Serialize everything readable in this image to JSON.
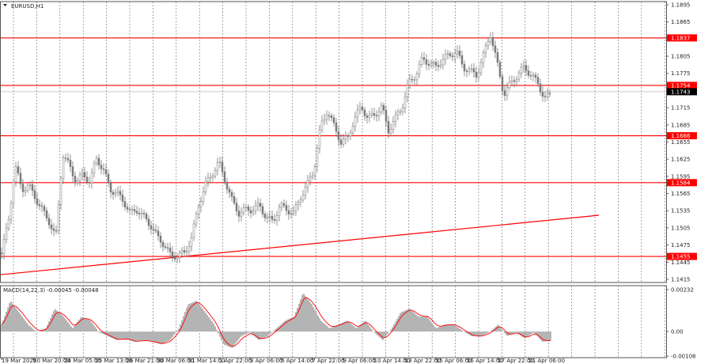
{
  "chart_data": {
    "type": "candlestick",
    "symbol_label": "EURUSD,H1",
    "indicator_label": "MACD(14,22,3) -0.00045 -0.00048",
    "price_axis": {
      "range": [
        1.1415,
        1.1895
      ],
      "ticks": [
        "1.1895",
        "1.1865",
        "1.1805",
        "1.1775",
        "1.1715",
        "1.1685",
        "1.1655",
        "1.1625",
        "1.1595",
        "1.1565",
        "1.1535",
        "1.1505",
        "1.1475",
        "1.1445",
        "1.1415"
      ]
    },
    "macd_axis": {
      "range": [
        -0.00108,
        0.00232
      ],
      "ticks": [
        "0.00232",
        "0.00",
        "-0.00108"
      ]
    },
    "time_labels": [
      "19 Mar 2026",
      "20 Mar 20:00",
      "24 Mar 05:00",
      "25 Mar 13:00",
      "26 Mar 21:00",
      "30 Mar 06:00",
      "31 Mar 14:00",
      "1 Apr 22:00",
      "3 Apr 06:00",
      "6 Apr 14:00",
      "7 Apr 22:00",
      "9 Apr 06:00",
      "10 Apr 14:00",
      "13 Apr 22:00",
      "15 Apr 06:00",
      "16 Apr 14:00",
      "17 Apr 22:00",
      "21 Apr 06:00"
    ],
    "levels": [
      {
        "price": 1.1837,
        "label": "1.1837"
      },
      {
        "price": 1.1754,
        "label": "1.1754"
      },
      {
        "price": 1.1666,
        "label": "1.1666"
      },
      {
        "price": 1.1584,
        "label": "1.1584"
      },
      {
        "price": 1.1455,
        "label": "1.1455"
      }
    ],
    "current_price": {
      "price": 1.1743,
      "label": "1.1743"
    },
    "trendline": {
      "start_price": 1.1423,
      "end_price": 1.1527
    },
    "close_path": [
      1.1461,
      1.1516,
      1.1613,
      1.1572,
      1.1579,
      1.1557,
      1.1536,
      1.1516,
      1.1488,
      1.1634,
      1.1613,
      1.1585,
      1.1599,
      1.1585,
      1.1627,
      1.1606,
      1.1572,
      1.1565,
      1.1551,
      1.153,
      1.1537,
      1.1523,
      1.1509,
      1.1488,
      1.1475,
      1.1454,
      1.1458,
      1.1461,
      1.1488,
      1.1544,
      1.1579,
      1.1599,
      1.162,
      1.1585,
      1.1551,
      1.153,
      1.1537,
      1.1537,
      1.1544,
      1.1523,
      1.1516,
      1.1544,
      1.1537,
      1.153,
      1.1558,
      1.1579,
      1.1606,
      1.1682,
      1.171,
      1.1682,
      1.1655,
      1.1662,
      1.1696,
      1.1717,
      1.1696,
      1.1703,
      1.1717,
      1.1675,
      1.1696,
      1.1717,
      1.1758,
      1.1772,
      1.18,
      1.1793,
      1.1786,
      1.18,
      1.1807,
      1.1814,
      1.1786,
      1.1779,
      1.1772,
      1.1807,
      1.1845,
      1.1793,
      1.1738,
      1.1758,
      1.1772,
      1.1786,
      1.1772,
      1.1758,
      1.1731,
      1.174
    ],
    "macd_path": [
      0.00039,
      0.00171,
      0.00105,
      0.00039,
      -4e-05,
      0.00018,
      0.00127,
      0.00083,
      0.00018,
      0.00083,
      0.00061,
      -4e-05,
      -0.00026,
      -0.00048,
      -0.00039,
      -0.00057,
      -0.00048,
      -0.00057,
      -0.0007,
      -0.00048,
      0.00018,
      0.00149,
      0.00171,
      0.00105,
      0.00039,
      -0.0007,
      -0.00092,
      -0.00026,
      -4e-05,
      -0.00048,
      -0.00026,
      0.00018,
      0.00061,
      0.00083,
      0.00215,
      0.00149,
      0.00061,
      0.00018,
      0.00039,
      0.00061,
      0.00018,
      0.00061,
      -4e-05,
      -0.00048,
      0.00018,
      0.00105,
      0.00127,
      0.00083,
      0.00083,
      0.00018,
      0.00039,
      0.00039,
      4e-05,
      -0.00026,
      -0.00026,
      -4e-05,
      0.00039,
      -0.00026,
      -4e-05,
      -0.00039,
      -4e-05,
      -0.00057,
      -0.00048
    ],
    "colors": {
      "candles": "#7a7a7a",
      "levels": "#ff0000",
      "current": "#000000",
      "macd_hist": "#b4b4b4",
      "signal": "#ff0000",
      "grid": "#555555"
    }
  }
}
